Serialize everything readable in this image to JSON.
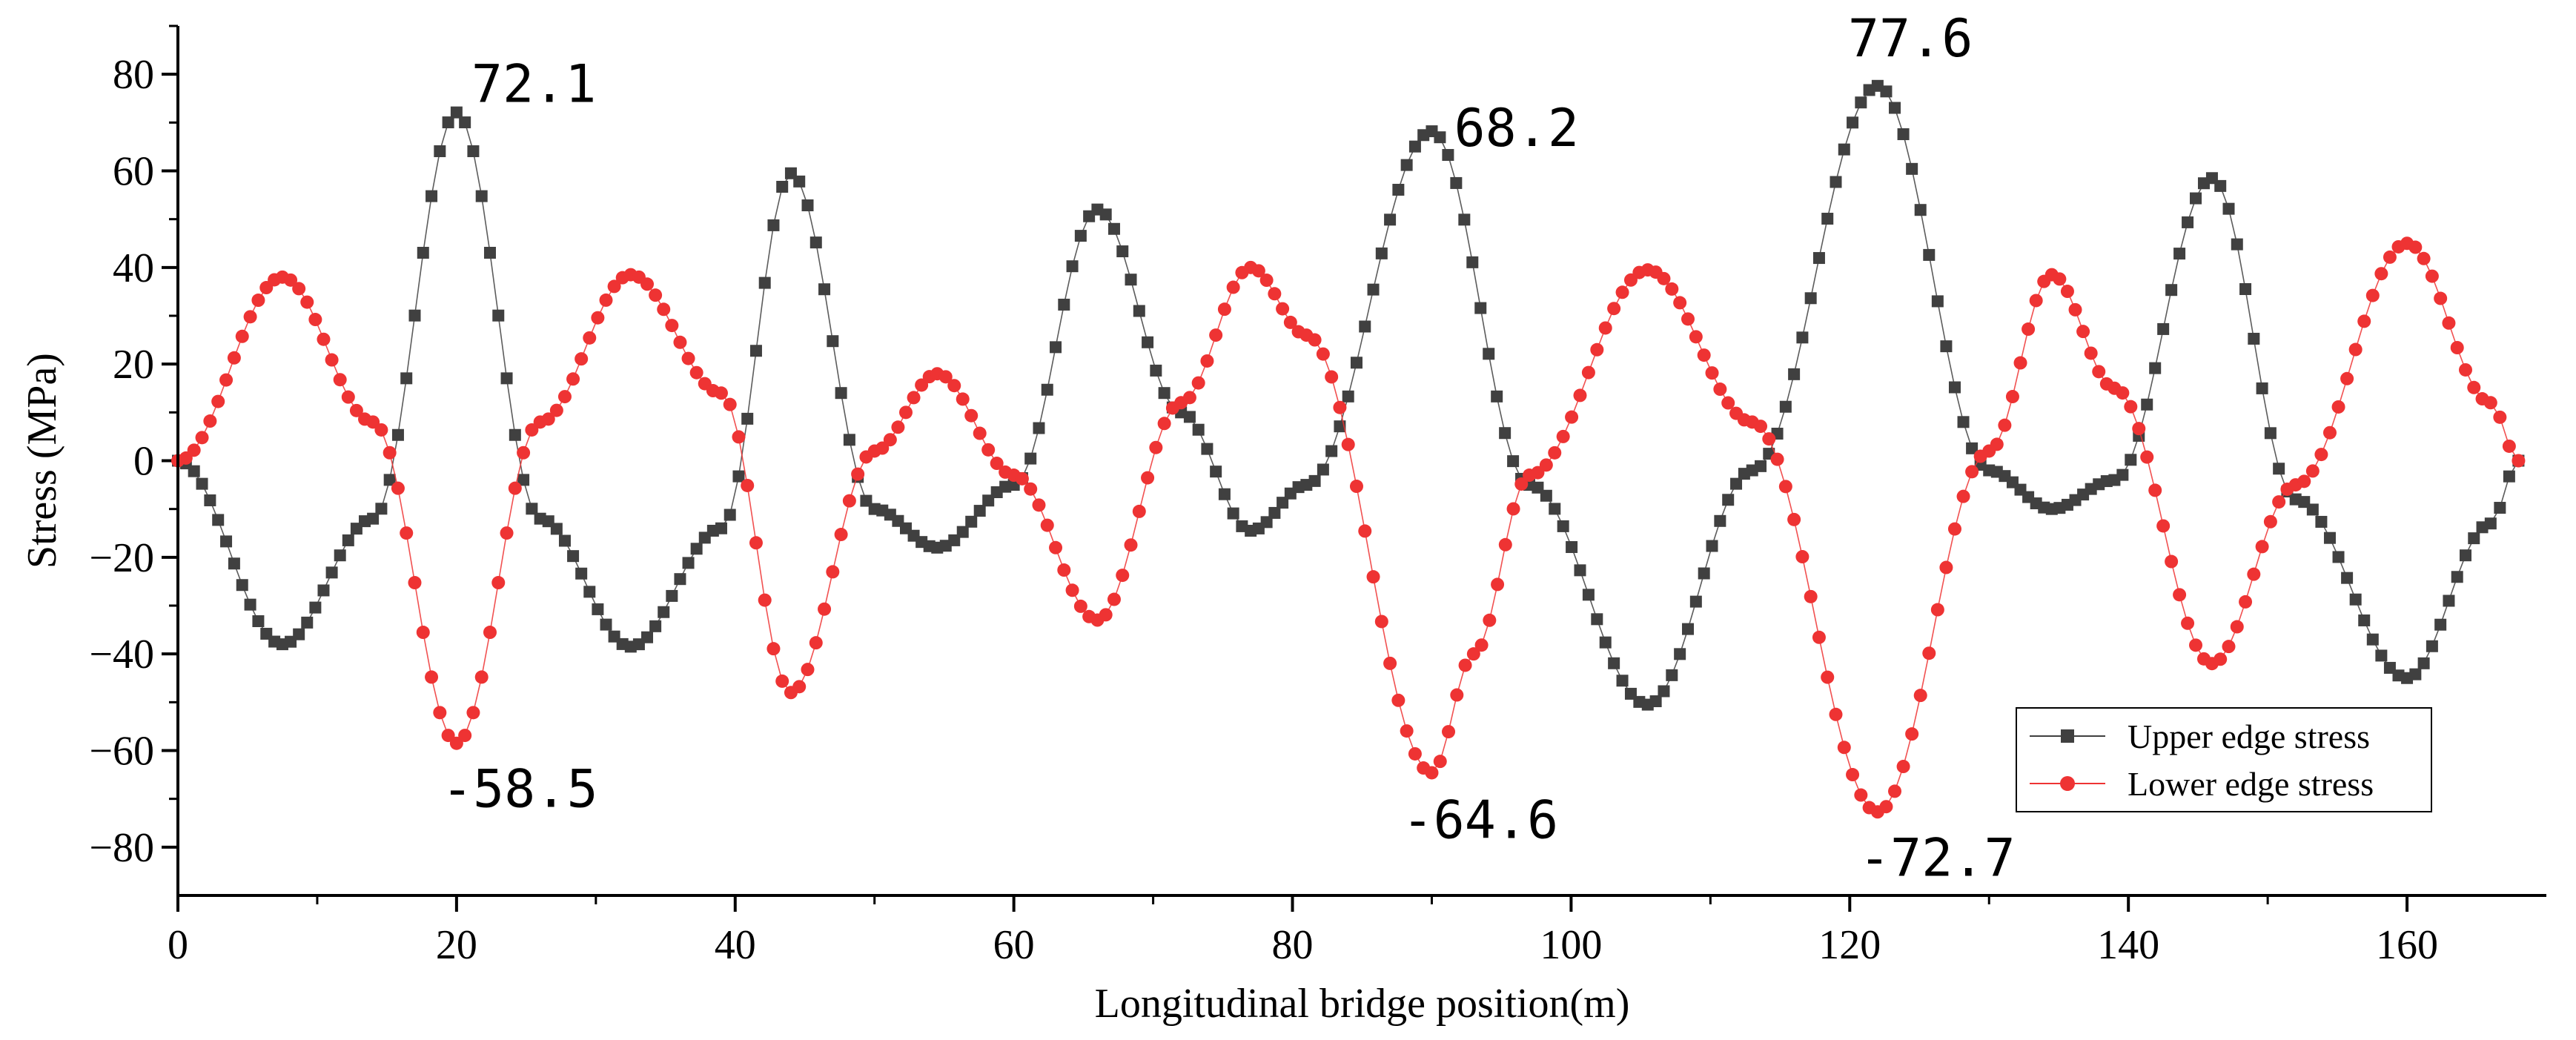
{
  "chart_data": {
    "type": "line",
    "title": "",
    "xlabel": "Longitudinal bridge position(m)",
    "ylabel": "Stress (MPa)",
    "xlim": [
      0,
      170
    ],
    "ylim": [
      -90,
      90
    ],
    "xticks": [
      0,
      20,
      40,
      60,
      80,
      100,
      120,
      140,
      160
    ],
    "yticks": [
      -80,
      -60,
      -40,
      -20,
      0,
      20,
      40,
      60,
      80
    ],
    "legend_position": "bottom-right",
    "colors": {
      "upper": "#404040",
      "lower": "#ee3333"
    },
    "series": [
      {
        "name": "Upper edge stress",
        "marker": "square",
        "keypoints": [
          [
            0,
            0
          ],
          [
            7.5,
            -38
          ],
          [
            14,
            -12
          ],
          [
            20,
            72.1
          ],
          [
            26,
            -12
          ],
          [
            32.5,
            -38.5
          ],
          [
            39,
            -14
          ],
          [
            44,
            59.5
          ],
          [
            50,
            -10
          ],
          [
            54.5,
            -18
          ],
          [
            60,
            -5
          ],
          [
            66,
            52
          ],
          [
            72,
            10
          ],
          [
            77,
            -14.5
          ],
          [
            81,
            -5
          ],
          [
            90,
            68.2
          ],
          [
            97,
            -5
          ],
          [
            105.5,
            -50.5
          ],
          [
            113,
            -2
          ],
          [
            122,
            77.6
          ],
          [
            130,
            -2
          ],
          [
            134.5,
            -10
          ],
          [
            139,
            -4
          ],
          [
            146,
            58.5
          ],
          [
            152,
            -8
          ],
          [
            160,
            -45
          ],
          [
            166,
            -13
          ],
          [
            168,
            0
          ]
        ]
      },
      {
        "name": "Lower edge stress",
        "marker": "circle",
        "keypoints": [
          [
            0,
            0
          ],
          [
            7.5,
            38
          ],
          [
            14,
            8
          ],
          [
            20,
            -58.5
          ],
          [
            26,
            8
          ],
          [
            32.5,
            38.5
          ],
          [
            39,
            14
          ],
          [
            44,
            -48
          ],
          [
            50,
            2
          ],
          [
            54.5,
            18
          ],
          [
            60,
            -3
          ],
          [
            66,
            -33
          ],
          [
            72,
            12
          ],
          [
            77,
            40
          ],
          [
            81,
            26
          ],
          [
            90,
            -64.6
          ],
          [
            93,
            -40
          ],
          [
            97,
            -3
          ],
          [
            105.5,
            39.5
          ],
          [
            113,
            8
          ],
          [
            122,
            -72.7
          ],
          [
            130,
            2
          ],
          [
            134.5,
            38.5
          ],
          [
            139,
            15
          ],
          [
            146,
            -42
          ],
          [
            152,
            -5
          ],
          [
            160,
            45
          ],
          [
            166,
            12
          ],
          [
            168,
            0
          ]
        ]
      }
    ],
    "annotations": [
      {
        "text": "72.1",
        "x": 20,
        "y": 72.1
      },
      {
        "text": "-58.5",
        "x": 20,
        "y": -58.5
      },
      {
        "text": "68.2",
        "x": 90,
        "y": 68.2
      },
      {
        "text": "-64.6",
        "x": 90,
        "y": -64.6
      },
      {
        "text": "77.6",
        "x": 122,
        "y": 77.6
      },
      {
        "text": "-72.7",
        "x": 122,
        "y": -72.7
      }
    ]
  }
}
